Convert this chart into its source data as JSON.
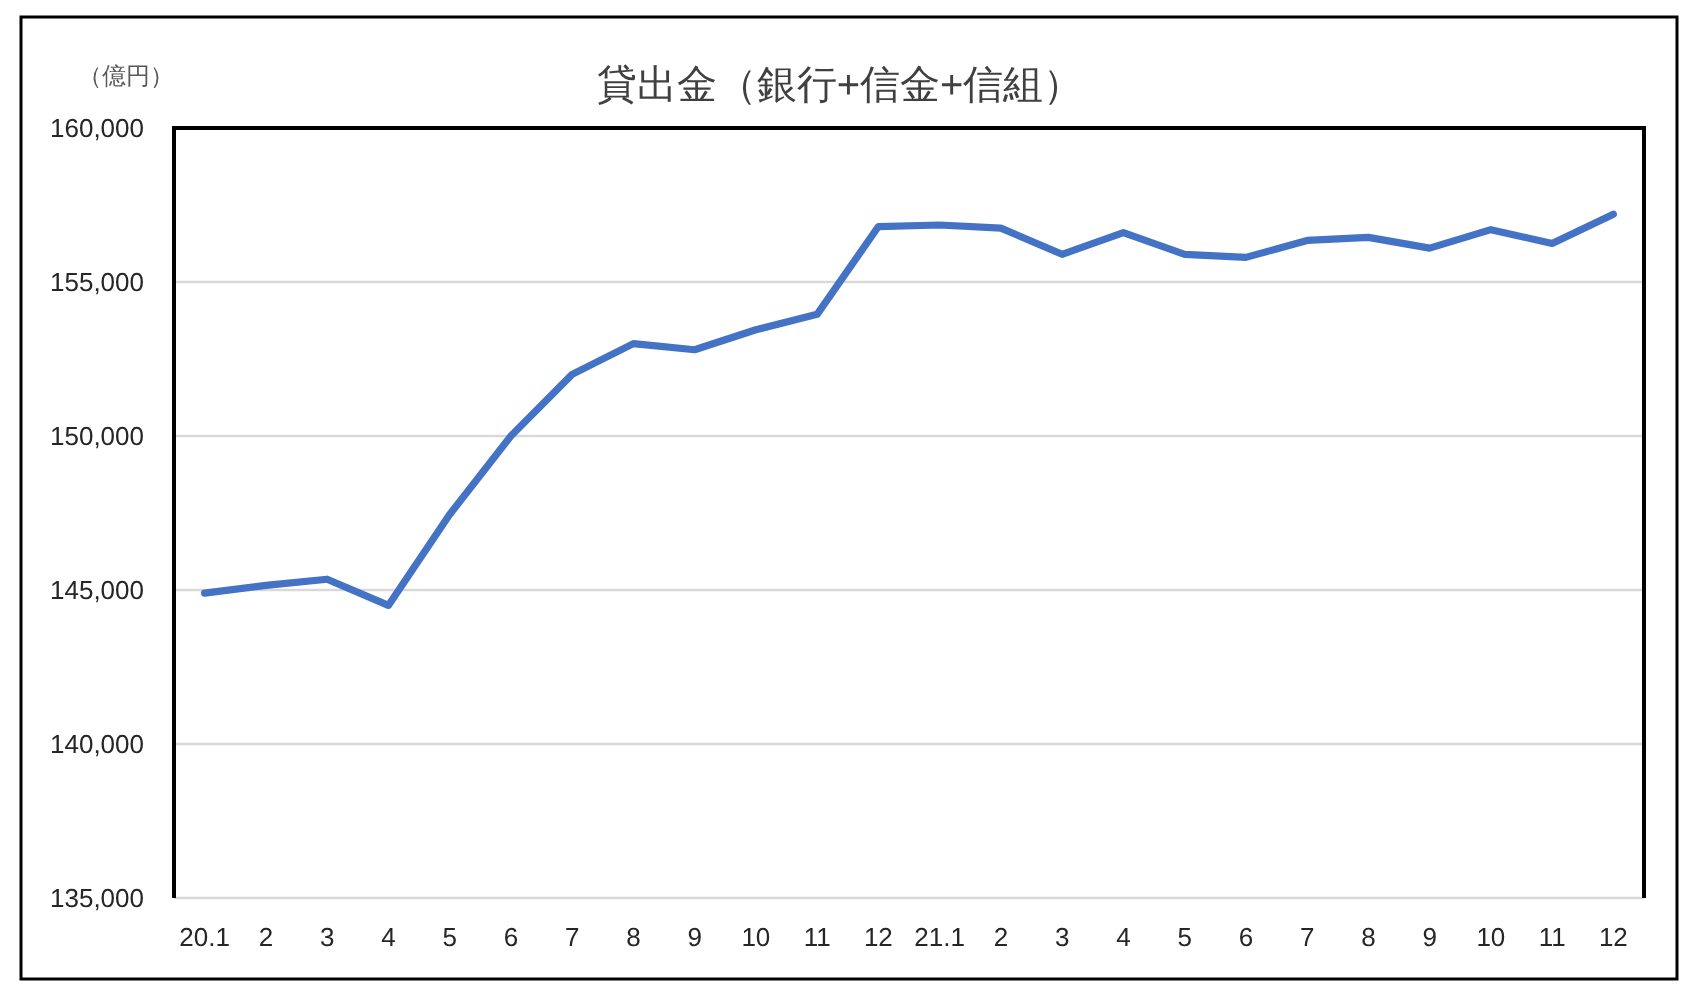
{
  "chart_data": {
    "type": "line",
    "title": "貸出金（銀行+信金+信組）",
    "ylabel": "（億円）",
    "categories": [
      "20.1",
      "2",
      "3",
      "4",
      "5",
      "6",
      "7",
      "8",
      "9",
      "10",
      "11",
      "12",
      "21.1",
      "2",
      "3",
      "4",
      "5",
      "6",
      "7",
      "8",
      "9",
      "10",
      "11",
      "12"
    ],
    "series": [
      {
        "color": "#4472c4",
        "values": [
          144900,
          145150,
          145350,
          144500,
          147450,
          150000,
          152000,
          153000,
          152800,
          153450,
          153950,
          156800,
          156850,
          156750,
          155900,
          156600,
          155900,
          155800,
          156350,
          156450,
          156100,
          156700,
          156250,
          157200
        ]
      }
    ],
    "ylim": [
      135000,
      160000
    ],
    "yticks": [
      {
        "value": 135000,
        "label": "135,000"
      },
      {
        "value": 140000,
        "label": "140,000"
      },
      {
        "value": 145000,
        "label": "145,000"
      },
      {
        "value": 150000,
        "label": "150,000"
      },
      {
        "value": 155000,
        "label": "155,000"
      },
      {
        "value": 160000,
        "label": "160,000"
      }
    ],
    "grid": "y",
    "marker": "none",
    "line_style": "solid"
  }
}
